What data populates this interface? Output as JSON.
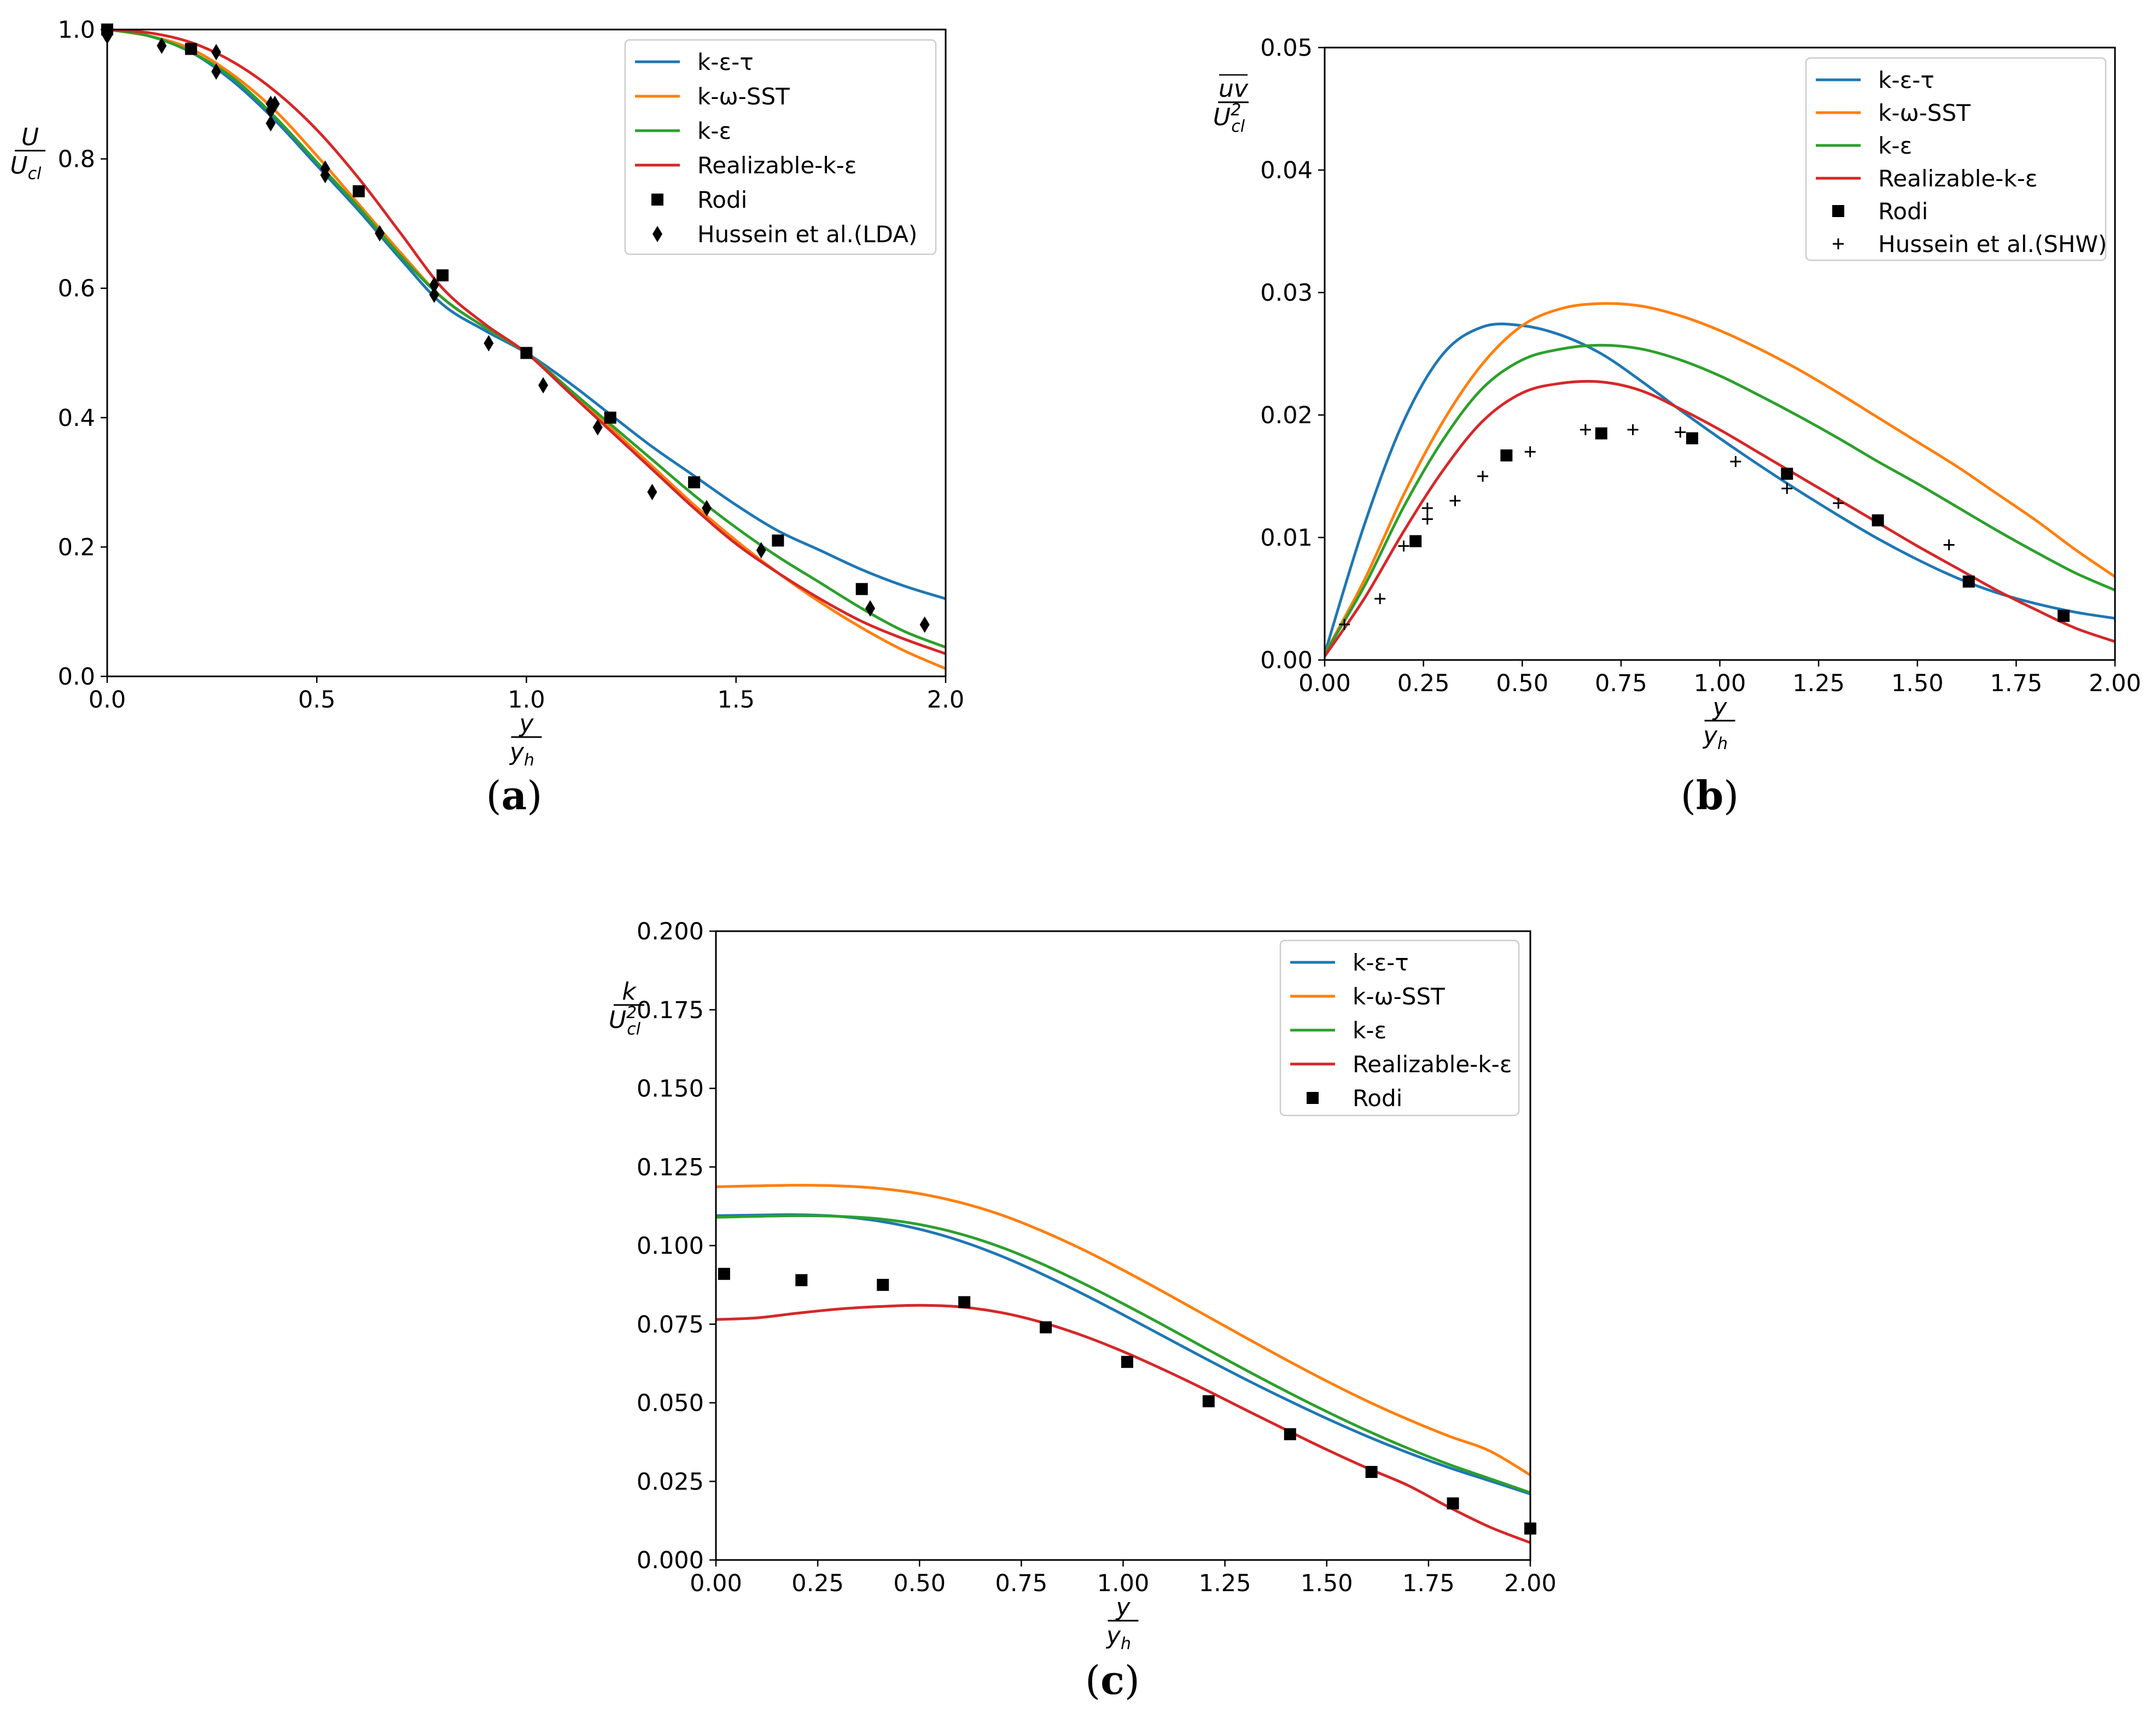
{
  "chart_data": [
    {
      "id": "a",
      "type": "line",
      "caption": "a",
      "xlim": [
        0,
        2.0
      ],
      "ylim": [
        0,
        1.0
      ],
      "xticks": [
        "0.0",
        "0.5",
        "1.0",
        "1.5",
        "2.0"
      ],
      "xtick_values": [
        0,
        0.5,
        1.0,
        1.5,
        2.0
      ],
      "yticks": [
        "0.0",
        "0.2",
        "0.4",
        "0.6",
        "0.8",
        "1.0"
      ],
      "ytick_values": [
        0,
        0.2,
        0.4,
        0.6,
        0.8,
        1.0
      ],
      "xlabel_num": "y",
      "xlabel_den": "y",
      "xlabel_den_sub": "h",
      "ylabel_num": "U",
      "ylabel_den": "U",
      "ylabel_den_sub": "cl",
      "legend_position": "top-right",
      "x": [
        0,
        0.1,
        0.2,
        0.3,
        0.4,
        0.5,
        0.6,
        0.7,
        0.8,
        0.9,
        1.0,
        1.1,
        1.2,
        1.3,
        1.4,
        1.5,
        1.6,
        1.7,
        1.8,
        1.9,
        2.0
      ],
      "series": [
        {
          "name": "k-ε-τ",
          "color": "#1f77b4",
          "values": [
            1.0,
            0.99,
            0.965,
            0.92,
            0.86,
            0.79,
            0.72,
            0.645,
            0.575,
            0.535,
            0.5,
            0.455,
            0.405,
            0.355,
            0.31,
            0.265,
            0.225,
            0.195,
            0.165,
            0.14,
            0.12
          ]
        },
        {
          "name": "k-ω-SST",
          "color": "#ff7f0e",
          "values": [
            1.0,
            0.99,
            0.97,
            0.93,
            0.875,
            0.805,
            0.73,
            0.655,
            0.585,
            0.54,
            0.5,
            0.445,
            0.385,
            0.325,
            0.265,
            0.21,
            0.16,
            0.115,
            0.075,
            0.04,
            0.012
          ]
        },
        {
          "name": "k-ε",
          "color": "#2ca02c",
          "values": [
            1.0,
            0.99,
            0.965,
            0.925,
            0.865,
            0.795,
            0.725,
            0.65,
            0.585,
            0.54,
            0.5,
            0.445,
            0.39,
            0.335,
            0.28,
            0.23,
            0.185,
            0.145,
            0.105,
            0.07,
            0.045
          ]
        },
        {
          "name": "Realizable-k-ε",
          "color": "#d62728",
          "values": [
            1.0,
            0.995,
            0.98,
            0.95,
            0.905,
            0.845,
            0.77,
            0.685,
            0.6,
            0.545,
            0.5,
            0.44,
            0.38,
            0.32,
            0.26,
            0.205,
            0.16,
            0.12,
            0.085,
            0.058,
            0.035
          ]
        }
      ],
      "markers": [
        {
          "name": "Rodi",
          "shape": "square",
          "x": [
            0.0,
            0.2,
            0.6,
            0.8,
            1.0,
            1.2,
            1.4,
            1.6,
            1.8
          ],
          "y": [
            1.0,
            0.97,
            0.75,
            0.62,
            0.5,
            0.4,
            0.3,
            0.21,
            0.135
          ]
        },
        {
          "name": "Hussein et al.(LDA)",
          "shape": "diamond",
          "x": [
            0.0,
            0.13,
            0.26,
            0.26,
            0.39,
            0.39,
            0.39,
            0.4,
            0.52,
            0.52,
            0.65,
            0.78,
            0.78,
            0.91,
            1.04,
            1.17,
            1.3,
            1.43,
            1.56,
            1.82,
            1.95
          ],
          "y": [
            0.99,
            0.975,
            0.965,
            0.935,
            0.885,
            0.875,
            0.855,
            0.885,
            0.785,
            0.775,
            0.685,
            0.605,
            0.59,
            0.515,
            0.45,
            0.385,
            0.285,
            0.26,
            0.195,
            0.105,
            0.08
          ]
        }
      ]
    },
    {
      "id": "b",
      "type": "line",
      "caption": "b",
      "xlim": [
        0,
        2.0
      ],
      "ylim": [
        0,
        0.05
      ],
      "xticks": [
        "0.00",
        "0.25",
        "0.50",
        "0.75",
        "1.00",
        "1.25",
        "1.50",
        "1.75",
        "2.00"
      ],
      "xtick_values": [
        0,
        0.25,
        0.5,
        0.75,
        1.0,
        1.25,
        1.5,
        1.75,
        2.0
      ],
      "yticks": [
        "0.00",
        "0.01",
        "0.02",
        "0.03",
        "0.04",
        "0.05"
      ],
      "ytick_values": [
        0,
        0.01,
        0.02,
        0.03,
        0.04,
        0.05
      ],
      "xlabel_num": "y",
      "xlabel_den": "y",
      "xlabel_den_sub": "h",
      "ylabel_num": "uv",
      "ylabel_den": "U",
      "ylabel_den_sub": "cl",
      "ylabel_den_sup": "2",
      "legend_position": "top-right",
      "x": [
        0,
        0.1,
        0.2,
        0.3,
        0.4,
        0.5,
        0.6,
        0.7,
        0.8,
        0.9,
        1.0,
        1.1,
        1.2,
        1.3,
        1.4,
        1.5,
        1.6,
        1.7,
        1.8,
        1.9,
        2.0
      ],
      "series": [
        {
          "name": "k-ε-τ",
          "color": "#1f77b4",
          "values": [
            0.0005,
            0.011,
            0.0195,
            0.025,
            0.0272,
            0.0273,
            0.0265,
            0.025,
            0.0228,
            0.0204,
            0.0181,
            0.0159,
            0.0138,
            0.0118,
            0.0099,
            0.0082,
            0.0067,
            0.0055,
            0.0046,
            0.0039,
            0.0034
          ]
        },
        {
          "name": "k-ω-SST",
          "color": "#ff7f0e",
          "values": [
            0.0005,
            0.0065,
            0.0135,
            0.0195,
            0.0242,
            0.0273,
            0.0287,
            0.0291,
            0.0289,
            0.0281,
            0.0269,
            0.0254,
            0.0237,
            0.0218,
            0.0198,
            0.0178,
            0.0158,
            0.0136,
            0.0114,
            0.009,
            0.0068
          ]
        },
        {
          "name": "k-ε",
          "color": "#2ca02c",
          "values": [
            0.0005,
            0.006,
            0.0125,
            0.018,
            0.0222,
            0.0245,
            0.0254,
            0.0257,
            0.0254,
            0.0245,
            0.0232,
            0.0216,
            0.0199,
            0.0181,
            0.0162,
            0.0144,
            0.0125,
            0.0106,
            0.0088,
            0.0071,
            0.0057
          ]
        },
        {
          "name": "Realizable-k-ε",
          "color": "#d62728",
          "values": [
            0.0003,
            0.005,
            0.0105,
            0.0155,
            0.0195,
            0.0218,
            0.0226,
            0.0227,
            0.022,
            0.0205,
            0.0188,
            0.0169,
            0.015,
            0.0131,
            0.0112,
            0.0093,
            0.0075,
            0.0057,
            0.0041,
            0.0026,
            0.0015
          ]
        }
      ],
      "markers": [
        {
          "name": "Rodi",
          "shape": "square",
          "x": [
            0.23,
            0.46,
            0.7,
            0.93,
            1.17,
            1.4,
            1.63,
            1.87
          ],
          "y": [
            0.0097,
            0.0167,
            0.0185,
            0.0181,
            0.0152,
            0.0114,
            0.0064,
            0.0036
          ]
        },
        {
          "name": "Hussein et al.(SHW)",
          "shape": "plus",
          "x": [
            0.05,
            0.14,
            0.2,
            0.26,
            0.26,
            0.33,
            0.4,
            0.52,
            0.66,
            0.78,
            0.9,
            1.04,
            1.17,
            1.3,
            1.58
          ],
          "y": [
            0.0029,
            0.005,
            0.0093,
            0.0115,
            0.0124,
            0.013,
            0.015,
            0.017,
            0.0188,
            0.0188,
            0.0186,
            0.0162,
            0.014,
            0.0128,
            0.0094
          ]
        }
      ]
    },
    {
      "id": "c",
      "type": "line",
      "caption": "c",
      "xlim": [
        0,
        2.0
      ],
      "ylim": [
        0,
        0.2
      ],
      "xticks": [
        "0.00",
        "0.25",
        "0.50",
        "0.75",
        "1.00",
        "1.25",
        "1.50",
        "1.75",
        "2.00"
      ],
      "xtick_values": [
        0,
        0.25,
        0.5,
        0.75,
        1.0,
        1.25,
        1.5,
        1.75,
        2.0
      ],
      "yticks": [
        "0.000",
        "0.025",
        "0.050",
        "0.075",
        "0.100",
        "0.125",
        "0.150",
        "0.175",
        "0.200"
      ],
      "ytick_values": [
        0,
        0.025,
        0.05,
        0.075,
        0.1,
        0.125,
        0.15,
        0.175,
        0.2
      ],
      "xlabel_num": "y",
      "xlabel_den": "y",
      "xlabel_den_sub": "h",
      "ylabel_num": "k",
      "ylabel_den": "U",
      "ylabel_den_sub": "cl",
      "ylabel_den_sup": "2",
      "legend_position": "top-right",
      "x": [
        0,
        0.1,
        0.2,
        0.3,
        0.4,
        0.5,
        0.6,
        0.7,
        0.8,
        0.9,
        1.0,
        1.1,
        1.2,
        1.3,
        1.4,
        1.5,
        1.6,
        1.7,
        1.8,
        1.9,
        2.0
      ],
      "series": [
        {
          "name": "k-ε-τ",
          "color": "#1f77b4",
          "values": [
            0.1095,
            0.1097,
            0.1098,
            0.1093,
            0.1078,
            0.1052,
            0.1015,
            0.0967,
            0.091,
            0.0847,
            0.078,
            0.0711,
            0.0642,
            0.0575,
            0.0511,
            0.045,
            0.0393,
            0.0341,
            0.0294,
            0.0252,
            0.021
          ]
        },
        {
          "name": "k-ω-SST",
          "color": "#ff7f0e",
          "values": [
            0.1187,
            0.119,
            0.1192,
            0.119,
            0.1182,
            0.1165,
            0.1137,
            0.1098,
            0.1047,
            0.0988,
            0.0922,
            0.0852,
            0.078,
            0.0708,
            0.0637,
            0.0569,
            0.0505,
            0.0447,
            0.0394,
            0.0347,
            0.027
          ]
        },
        {
          "name": "k-ε",
          "color": "#2ca02c",
          "values": [
            0.109,
            0.1093,
            0.1095,
            0.1093,
            0.1085,
            0.1067,
            0.1037,
            0.0995,
            0.0942,
            0.0881,
            0.0815,
            0.0746,
            0.0675,
            0.0605,
            0.0537,
            0.0472,
            0.0411,
            0.0355,
            0.0304,
            0.0259,
            0.0214
          ]
        },
        {
          "name": "Realizable-k-ε",
          "color": "#d62728",
          "values": [
            0.0765,
            0.077,
            0.0785,
            0.0798,
            0.0806,
            0.081,
            0.0805,
            0.0787,
            0.0756,
            0.0714,
            0.0663,
            0.0605,
            0.0543,
            0.0478,
            0.0414,
            0.0351,
            0.0292,
            0.0237,
            0.0168,
            0.0105,
            0.0055
          ]
        }
      ],
      "markers": [
        {
          "name": "Rodi",
          "shape": "square",
          "x": [
            0.02,
            0.21,
            0.41,
            0.61,
            0.81,
            1.01,
            1.21,
            1.41,
            1.61,
            1.81,
            2.0
          ],
          "y": [
            0.091,
            0.089,
            0.0875,
            0.082,
            0.074,
            0.063,
            0.0505,
            0.04,
            0.028,
            0.018,
            0.01
          ]
        }
      ]
    }
  ]
}
